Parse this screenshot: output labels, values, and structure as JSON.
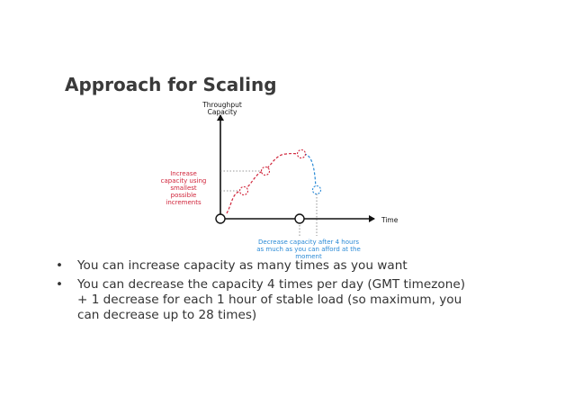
{
  "slide": {
    "title": "Approach for Scaling"
  },
  "diagram": {
    "y_axis_label": [
      "Throughput",
      "Capacity"
    ],
    "x_axis_label": "Time",
    "increase_label": [
      "Increase",
      "capacity using",
      "smallest",
      "possible",
      "increments"
    ],
    "decrease_label": [
      "Decrease capacity after 4 hours",
      "as much as you can afford at the",
      "moment"
    ],
    "colors": {
      "axis": "#111111",
      "increase": "#d0243a",
      "decrease": "#2a8ad6",
      "guide": "#777777"
    }
  },
  "bullets": [
    {
      "marker": "•",
      "lines": [
        "You can increase capacity as many times as you want"
      ]
    },
    {
      "marker": "•",
      "lines": [
        "You can decrease the capacity 4 times per day (GMT timezone)",
        "+ 1 decrease for each 1 hour of stable load (so maximum, you",
        "can decrease up to 28 times)"
      ]
    }
  ]
}
